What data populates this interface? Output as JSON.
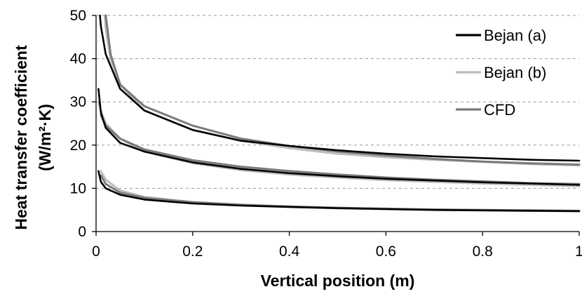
{
  "chart_data": {
    "type": "line",
    "title": "",
    "xlabel": "Vertical position (m)",
    "ylabel": "Heat transfer coefficient",
    "ylabel_unit": "(W/m²·K)",
    "xlim": [
      0,
      1
    ],
    "ylim": [
      0,
      50
    ],
    "x_ticks": [
      "0",
      "0.2",
      "0.4",
      "0.6",
      "0.8",
      "1"
    ],
    "y_ticks": [
      "0",
      "10",
      "20",
      "30",
      "40",
      "50"
    ],
    "grid": "horizontal-dashed",
    "legend_position": "top-right",
    "colors": {
      "Bejan (a)": "#000000",
      "Bejan (b)": "#bdbdbd",
      "CFD": "#7a7a7a"
    },
    "legend": [
      "Bejan (a)",
      "Bejan (b)",
      "CFD"
    ],
    "series": [
      {
        "name": "Bejan (a)",
        "group": "upper",
        "points": [
          [
            0.008,
            50
          ],
          [
            0.01,
            47.5
          ],
          [
            0.02,
            41
          ],
          [
            0.05,
            33
          ],
          [
            0.1,
            28
          ],
          [
            0.2,
            23.5
          ],
          [
            0.3,
            21
          ],
          [
            0.4,
            19.8
          ],
          [
            0.5,
            18.8
          ],
          [
            0.6,
            18
          ],
          [
            0.7,
            17.4
          ],
          [
            0.8,
            17
          ],
          [
            0.9,
            16.6
          ],
          [
            1.0,
            16.4
          ]
        ]
      },
      {
        "name": "Bejan (b)",
        "group": "upper",
        "points": [
          [
            0.018,
            50
          ],
          [
            0.02,
            47
          ],
          [
            0.03,
            40
          ],
          [
            0.05,
            34
          ],
          [
            0.1,
            28
          ],
          [
            0.2,
            23.5
          ],
          [
            0.3,
            21
          ],
          [
            0.4,
            19.3
          ],
          [
            0.5,
            18
          ],
          [
            0.6,
            17.2
          ],
          [
            0.7,
            16.6
          ],
          [
            0.8,
            16.1
          ],
          [
            0.9,
            15.6
          ],
          [
            1.0,
            15.3
          ]
        ]
      },
      {
        "name": "CFD",
        "group": "upper",
        "points": [
          [
            0.02,
            50
          ],
          [
            0.03,
            41
          ],
          [
            0.05,
            34
          ],
          [
            0.1,
            29
          ],
          [
            0.2,
            24.5
          ],
          [
            0.3,
            21.5
          ],
          [
            0.4,
            19.8
          ],
          [
            0.5,
            18.5
          ],
          [
            0.6,
            17.6
          ],
          [
            0.7,
            16.8
          ],
          [
            0.8,
            16.2
          ],
          [
            0.9,
            15.8
          ],
          [
            1.0,
            15.5
          ]
        ]
      },
      {
        "name": "Bejan (a)",
        "group": "middle",
        "points": [
          [
            0.005,
            33
          ],
          [
            0.01,
            27.5
          ],
          [
            0.02,
            24
          ],
          [
            0.05,
            20.5
          ],
          [
            0.1,
            18.5
          ],
          [
            0.2,
            16
          ],
          [
            0.3,
            14.5
          ],
          [
            0.4,
            13.5
          ],
          [
            0.5,
            12.8
          ],
          [
            0.6,
            12.2
          ],
          [
            0.7,
            11.8
          ],
          [
            0.8,
            11.4
          ],
          [
            0.9,
            11.1
          ],
          [
            1.0,
            10.8
          ]
        ]
      },
      {
        "name": "Bejan (b)",
        "group": "middle",
        "points": [
          [
            0.005,
            30
          ],
          [
            0.01,
            28
          ],
          [
            0.02,
            25
          ],
          [
            0.05,
            21.5
          ],
          [
            0.1,
            18.5
          ],
          [
            0.2,
            15.8
          ],
          [
            0.3,
            14.2
          ],
          [
            0.4,
            13.2
          ],
          [
            0.5,
            12.5
          ],
          [
            0.6,
            11.9
          ],
          [
            0.7,
            11.5
          ],
          [
            0.8,
            11.1
          ],
          [
            0.9,
            10.8
          ],
          [
            1.0,
            10.5
          ]
        ]
      },
      {
        "name": "CFD",
        "group": "middle",
        "points": [
          [
            0.01,
            27
          ],
          [
            0.02,
            24.5
          ],
          [
            0.05,
            21.5
          ],
          [
            0.1,
            19
          ],
          [
            0.2,
            16.5
          ],
          [
            0.3,
            15
          ],
          [
            0.4,
            14
          ],
          [
            0.5,
            13.2
          ],
          [
            0.6,
            12.5
          ],
          [
            0.7,
            12
          ],
          [
            0.8,
            11.6
          ],
          [
            0.9,
            11.2
          ],
          [
            1.0,
            11
          ]
        ]
      },
      {
        "name": "Bejan (a)",
        "group": "lower",
        "points": [
          [
            0.005,
            14
          ],
          [
            0.01,
            11.5
          ],
          [
            0.02,
            10
          ],
          [
            0.05,
            8.5
          ],
          [
            0.1,
            7.4
          ],
          [
            0.2,
            6.5
          ],
          [
            0.3,
            6
          ],
          [
            0.4,
            5.7
          ],
          [
            0.5,
            5.4
          ],
          [
            0.6,
            5.2
          ],
          [
            0.7,
            5
          ],
          [
            0.8,
            4.9
          ],
          [
            0.9,
            4.8
          ],
          [
            1.0,
            4.7
          ]
        ]
      },
      {
        "name": "Bejan (b)",
        "group": "lower",
        "points": [
          [
            0.01,
            14
          ],
          [
            0.02,
            12
          ],
          [
            0.05,
            9.5
          ],
          [
            0.1,
            8
          ],
          [
            0.2,
            6.8
          ],
          [
            0.3,
            6.1
          ],
          [
            0.4,
            5.7
          ],
          [
            0.5,
            5.4
          ],
          [
            0.6,
            5.2
          ],
          [
            0.7,
            5
          ],
          [
            0.8,
            4.9
          ],
          [
            0.9,
            4.8
          ],
          [
            1.0,
            4.7
          ]
        ]
      },
      {
        "name": "CFD",
        "group": "lower",
        "points": [
          [
            0.01,
            13
          ],
          [
            0.02,
            11
          ],
          [
            0.05,
            9
          ],
          [
            0.1,
            7.8
          ],
          [
            0.2,
            6.8
          ],
          [
            0.3,
            6.2
          ],
          [
            0.4,
            5.8
          ],
          [
            0.5,
            5.5
          ],
          [
            0.6,
            5.3
          ],
          [
            0.7,
            5.1
          ],
          [
            0.8,
            5
          ],
          [
            0.9,
            4.9
          ],
          [
            1.0,
            4.8
          ]
        ]
      }
    ]
  }
}
